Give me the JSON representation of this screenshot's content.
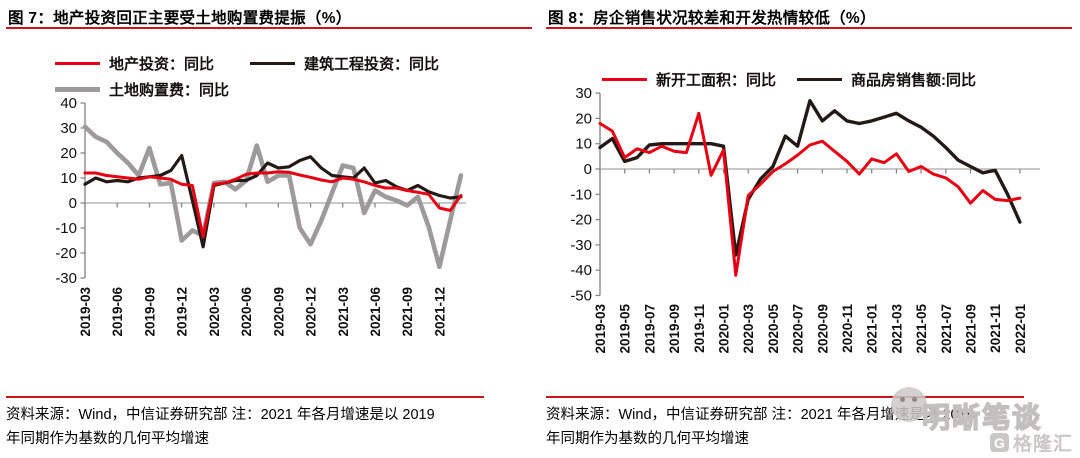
{
  "watermark": {
    "wechat_name": "明晰笔谈",
    "logo_letter": "G",
    "site_name": "格隆汇"
  },
  "panels": [
    {
      "title": "图 7：地产投资回正主要受土地购置费提振（%）",
      "legend": [
        {
          "label": "地产投资：同比",
          "color": "#e60012"
        },
        {
          "label": "建筑工程投资：同比",
          "color": "#251916"
        },
        {
          "label": "土地购置费：同比",
          "color": "#9c9a9a"
        }
      ],
      "footer": {
        "line1": "资料来源：Wind，中信证券研究部 注：2021 年各月增速是以 2019",
        "line2": "年同期作为基数的几何平均增速"
      }
    },
    {
      "title": "图 8：房企销售状况较差和开发热情较低（%）",
      "legend": [
        {
          "label": "新开工面积：同比",
          "color": "#e60012"
        },
        {
          "label": "商品房销售额:同比",
          "color": "#251916"
        }
      ],
      "footer": {
        "line1": "资料来源：Wind，中信证券研究部 注：2021 年各月增速是以 2019",
        "line2": "年同期作为基数的几何平均增速"
      }
    }
  ],
  "chart_data": [
    {
      "type": "line",
      "title": "地产投资回正主要受土地购置费提振",
      "unit": "%",
      "grid": "zero-line-only",
      "legend_position": "top",
      "ylim": [
        -30,
        40
      ],
      "y_ticks": [
        40,
        30,
        20,
        10,
        0,
        -10,
        -20,
        -30
      ],
      "x_tick_interval": 3,
      "categories": [
        "2019-03",
        "2019-04",
        "2019-05",
        "2019-06",
        "2019-07",
        "2019-08",
        "2019-09",
        "2019-10",
        "2019-11",
        "2019-12",
        "2020-01",
        "2020-02",
        "2020-03",
        "2020-04",
        "2020-05",
        "2020-06",
        "2020-07",
        "2020-08",
        "2020-09",
        "2020-10",
        "2020-11",
        "2020-12",
        "2021-01",
        "2021-02",
        "2021-03",
        "2021-04",
        "2021-05",
        "2021-06",
        "2021-07",
        "2021-08",
        "2021-09",
        "2021-10",
        "2021-11",
        "2021-12",
        "2022-01",
        "2022-02"
      ],
      "series": [
        {
          "name": "土地购置费：同比",
          "color": "#9c9a9a",
          "line_width": 4.6,
          "values": [
            30.5,
            26.5,
            24.5,
            20,
            16,
            11,
            22,
            7.5,
            8,
            -15,
            -11,
            -13,
            8,
            8.5,
            5.5,
            9,
            23,
            8.5,
            11,
            11,
            -10,
            -16.5,
            -7,
            4,
            15,
            14,
            -4,
            5,
            2.5,
            1,
            -1,
            2.5,
            -9.5,
            -25.5,
            -7,
            11
          ]
        },
        {
          "name": "建筑工程投资：同比",
          "color": "#251916",
          "line_width": 3.2,
          "values": [
            7.5,
            10,
            8.5,
            9,
            8.5,
            10,
            10.5,
            11,
            13,
            19,
            1,
            -17.5,
            7,
            8,
            9,
            9,
            11,
            16,
            14,
            14.5,
            17,
            18.5,
            14,
            11,
            10.5,
            10,
            14,
            8,
            9,
            6.5,
            5,
            7,
            4.5,
            3,
            2,
            2.5
          ]
        },
        {
          "name": "地产投资：同比",
          "color": "#e60012",
          "line_width": 3,
          "values": [
            12,
            12,
            11,
            10.5,
            10,
            9.5,
            10.5,
            10,
            9.5,
            7.5,
            7,
            -13.5,
            7.5,
            8,
            9.5,
            11.5,
            12,
            12,
            12.5,
            12.3,
            11.2,
            10.3,
            9.2,
            8.5,
            10,
            9.5,
            8.5,
            7,
            6,
            6,
            5,
            4.3,
            3.5,
            -2,
            -3,
            3
          ]
        }
      ]
    },
    {
      "type": "line",
      "title": "房企销售状况较差和开发热情较低",
      "unit": "%",
      "grid": "zero-line-only",
      "legend_position": "top",
      "ylim": [
        -50,
        30
      ],
      "y_ticks": [
        30,
        20,
        10,
        0,
        -10,
        -20,
        -30,
        -40,
        -50
      ],
      "x_tick_interval": 2,
      "categories": [
        "2019-03",
        "2019-04",
        "2019-05",
        "2019-06",
        "2019-07",
        "2019-08",
        "2019-09",
        "2019-10",
        "2019-11",
        "2019-12",
        "2020-01",
        "2020-02",
        "2020-03",
        "2020-04",
        "2020-05",
        "2020-06",
        "2020-07",
        "2020-08",
        "2020-09",
        "2020-10",
        "2020-11",
        "2020-12",
        "2021-01",
        "2021-02",
        "2021-03",
        "2021-04",
        "2021-05",
        "2021-06",
        "2021-07",
        "2021-08",
        "2021-09",
        "2021-10",
        "2021-11",
        "2021-12",
        "2022-01"
      ],
      "series": [
        {
          "name": "商品房销售额:同比",
          "color": "#251916",
          "line_width": 3.4,
          "values": [
            8.5,
            12,
            3,
            4.5,
            9.5,
            10,
            10,
            10,
            10,
            10,
            9,
            -34,
            -12,
            -4,
            1,
            13,
            9,
            27,
            19,
            23,
            19,
            18,
            19,
            20.5,
            22,
            19,
            16.5,
            13,
            8.5,
            3.5,
            1,
            -1.5,
            -0.5,
            -10,
            -21
          ]
        },
        {
          "name": "新开工面积：同比",
          "color": "#e60012",
          "line_width": 3,
          "values": [
            18,
            15,
            4.5,
            8,
            6.5,
            9,
            7,
            6.5,
            22,
            -2.5,
            7.5,
            -42,
            -10.5,
            -6,
            -1,
            2,
            5.5,
            9.5,
            11,
            7,
            3,
            -2,
            4,
            2.5,
            6,
            -1,
            1,
            -2,
            -3.5,
            -7,
            -13.5,
            -8.5,
            -12,
            -12.5,
            -11.5
          ]
        }
      ]
    }
  ]
}
